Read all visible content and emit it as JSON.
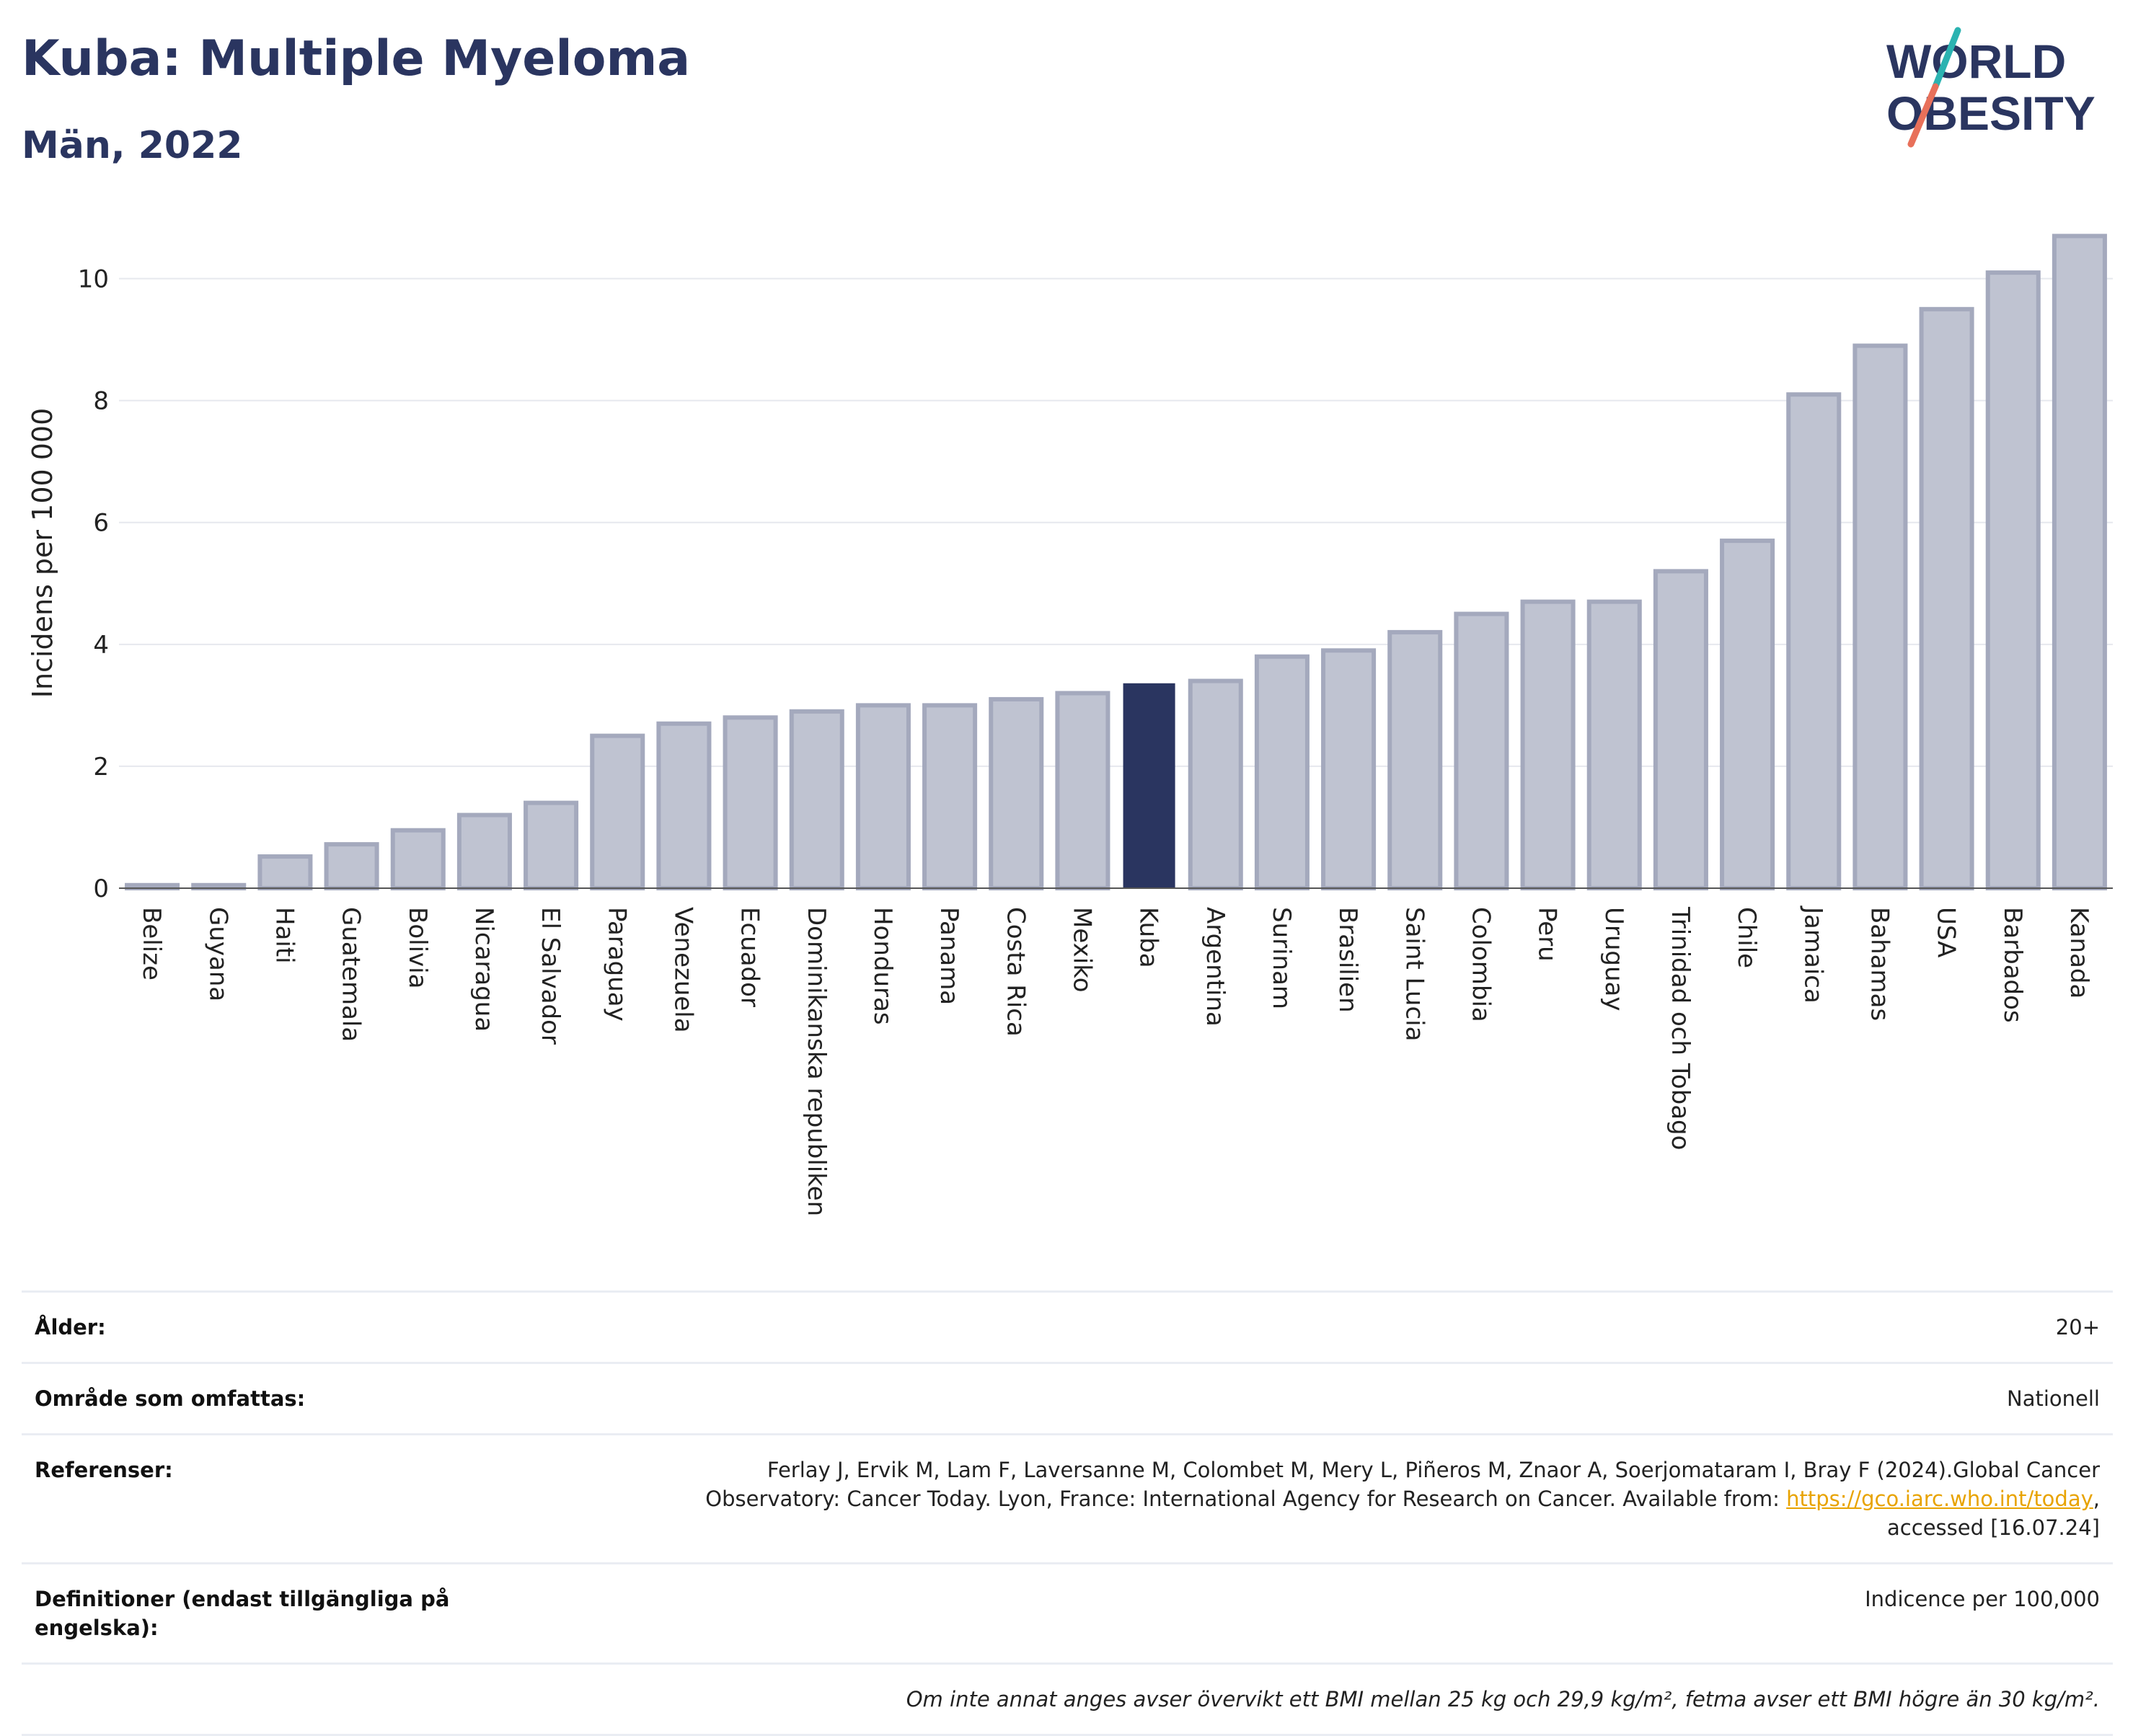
{
  "header": {
    "title": "Kuba: Multiple Myeloma",
    "subtitle": "Män, 2022",
    "logo_line1": "WORLD",
    "logo_line2": "OBESITY"
  },
  "colors": {
    "bar_default": "#bfc3d1",
    "bar_default_stroke": "#a4a9bd",
    "bar_highlight": "#2a3560",
    "title": "#2a3560",
    "logo_teal": "#2bb3b1",
    "logo_coral": "#e8705a",
    "link": "#e8a300"
  },
  "chart_data": {
    "type": "bar",
    "ylabel": "Incidens per 100 000",
    "xlabel": "",
    "ylim": [
      0,
      11
    ],
    "yticks": [
      0,
      2,
      4,
      6,
      8,
      10
    ],
    "grid": true,
    "highlight": "Kuba",
    "categories": [
      "Belize",
      "Guyana",
      "Haiti",
      "Guatemala",
      "Bolivia",
      "Nicaragua",
      "El Salvador",
      "Paraguay",
      "Venezuela",
      "Ecuador",
      "Dominikanska republiken",
      "Honduras",
      "Panama",
      "Costa Rica",
      "Mexiko",
      "Kuba",
      "Argentina",
      "Surinam",
      "Brasilien",
      "Saint Lucia",
      "Colombia",
      "Peru",
      "Uruguay",
      "Trinidad och Tobago",
      "Chile",
      "Jamaica",
      "Bahamas",
      "USA",
      "Barbados",
      "Kanada"
    ],
    "values": [
      0.05,
      0.05,
      0.52,
      0.72,
      0.95,
      1.2,
      1.4,
      2.5,
      2.7,
      2.8,
      2.9,
      3.0,
      3.0,
      3.1,
      3.2,
      3.35,
      3.4,
      3.8,
      3.9,
      4.2,
      4.5,
      4.7,
      4.7,
      5.2,
      5.7,
      8.1,
      8.9,
      9.5,
      10.1,
      10.7
    ]
  },
  "meta": {
    "age_label": "Ålder:",
    "age_value": "20+",
    "area_label": "Område som omfattas:",
    "area_value": "Nationell",
    "ref_label": "Referenser:",
    "ref_text_1": "Ferlay J, Ervik M, Lam F, Laversanne M, Colombet M, Mery L, Piñeros M, Znaor A, Soerjomataram I, Bray F (2024).Global Cancer",
    "ref_text_2": "Observatory: Cancer Today. Lyon, France: International Agency for Research on Cancer. Available from: ",
    "ref_link": "https://gco.iarc.who.int/today",
    "ref_text_3": ",",
    "ref_text_4": "accessed [16.07.24]",
    "def_label": "Definitioner (endast tillgängliga på engelska):",
    "def_value": "Indicence per 100,000",
    "note": "Om inte annat anges avser övervikt ett BMI mellan 25 kg och 29,9 kg/m², fetma avser ett BMI högre än 30 kg/m²."
  }
}
